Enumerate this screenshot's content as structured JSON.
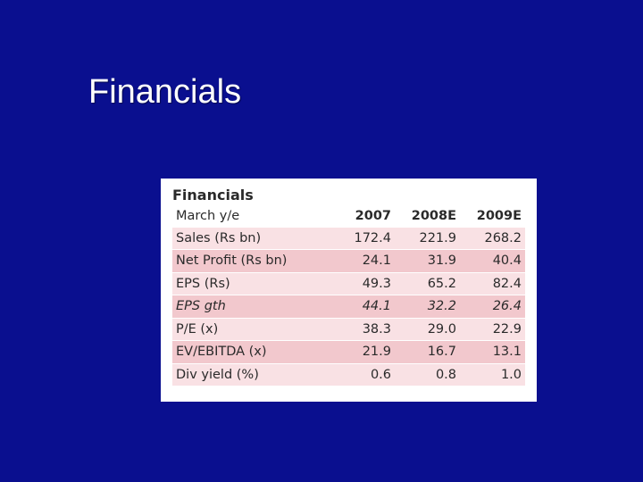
{
  "slide": {
    "title": "Financials"
  },
  "table": {
    "heading": "Financials",
    "header": {
      "label": "March y/e",
      "years": [
        "2007",
        "2008E",
        "2009E"
      ]
    },
    "rows": [
      {
        "label": "Sales (Rs bn)",
        "values": [
          "172.4",
          "221.9",
          "268.2"
        ]
      },
      {
        "label": "Net Profit (Rs bn)",
        "values": [
          "24.1",
          "31.9",
          "40.4"
        ]
      },
      {
        "label": "EPS (Rs)",
        "values": [
          "49.3",
          "65.2",
          "82.4"
        ]
      },
      {
        "label": "EPS gth",
        "values": [
          "44.1",
          "32.2",
          "26.4"
        ]
      },
      {
        "label": "P/E (x)",
        "values": [
          "38.3",
          "29.0",
          "22.9"
        ]
      },
      {
        "label": "EV/EBITDA (x)",
        "values": [
          "21.9",
          "16.7",
          "13.1"
        ]
      },
      {
        "label": "Div yield (%)",
        "values": [
          "0.6",
          "0.8",
          "1.0"
        ]
      }
    ]
  },
  "colors": {
    "background": "#0a0f8f",
    "row_light": "#f9e1e4",
    "row_dark": "#f2c8cd"
  }
}
